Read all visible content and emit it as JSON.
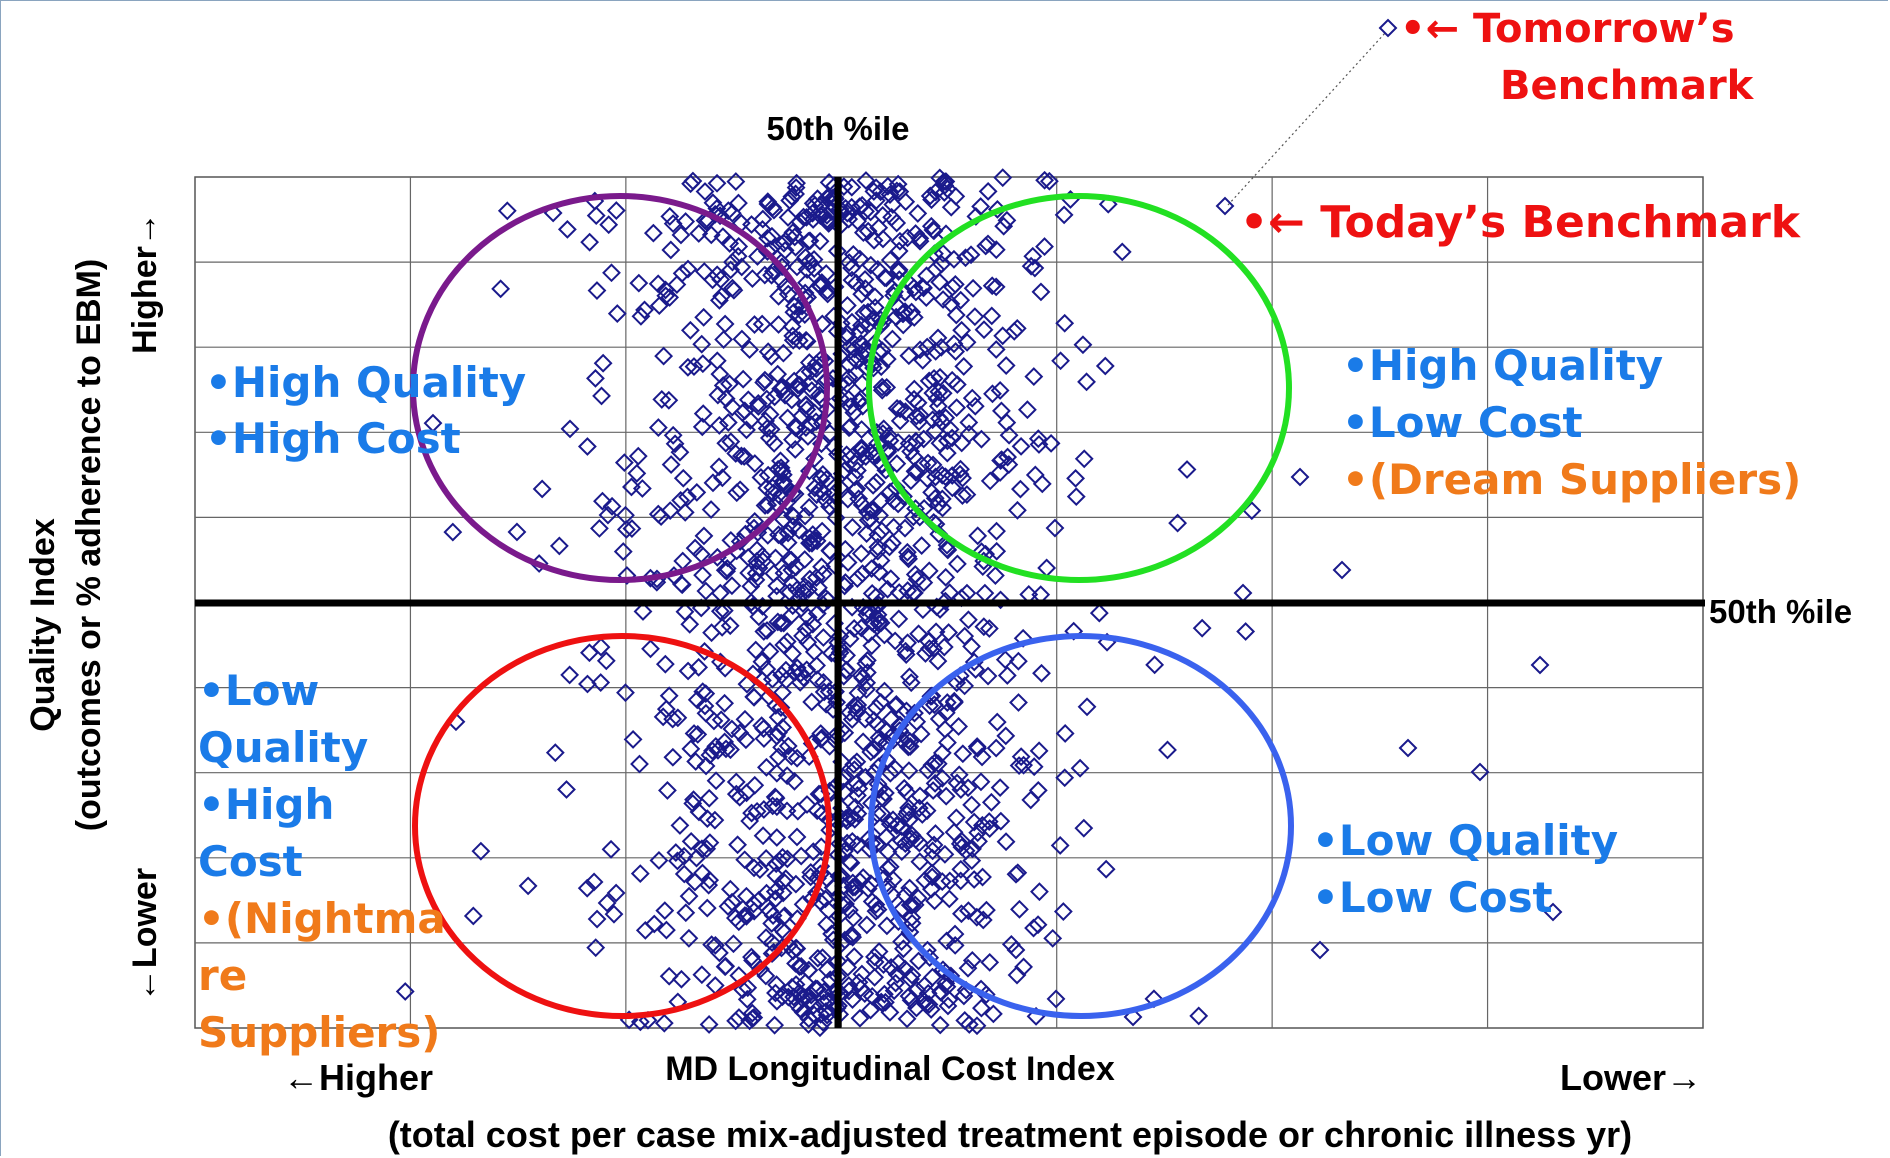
{
  "chart_data": {
    "type": "scatter",
    "title": "",
    "xlabel": "MD Longitudinal Cost Index",
    "xlabel_sub": "(total cost per case mix-adjusted treatment episode or chronic illness yr)",
    "x_left_label": "←Higher",
    "x_right_label": "Lower→",
    "ylabel": "Quality Index",
    "ylabel_sub": "(outcomes or % adherence to EBM)",
    "y_top_label": "Higher→",
    "y_bottom_label": "←Lower",
    "median_x_label": "50th %ile",
    "median_y_label": "50th %ile",
    "grid": true,
    "grid_cols": 7,
    "grid_rows": 10,
    "marker": "diamond-open",
    "marker_color": "#1a1a8c",
    "approx_point_count": 1600,
    "quadrants": [
      {
        "name": "top-left",
        "lines": [
          {
            "text": "•High Quality",
            "color": "#1a7be8"
          },
          {
            "text": "•High Cost",
            "color": "#1a7be8"
          }
        ],
        "circle_color": "#7a1a8c"
      },
      {
        "name": "top-right",
        "lines": [
          {
            "text": "•High Quality",
            "color": "#1a7be8"
          },
          {
            "text": "•Low Cost",
            "color": "#1a7be8"
          },
          {
            "text": "•(Dream Suppliers)",
            "color": "#f07a1a"
          }
        ],
        "circle_color": "#22e022"
      },
      {
        "name": "bottom-left",
        "lines": [
          {
            "text": "•Low",
            "color": "#1a7be8"
          },
          {
            "text": "Quality",
            "color": "#1a7be8"
          },
          {
            "text": "•High",
            "color": "#1a7be8"
          },
          {
            "text": "Cost",
            "color": "#1a7be8"
          },
          {
            "text": "•(Nightma",
            "color": "#f07a1a"
          },
          {
            "text": "re",
            "color": "#f07a1a"
          },
          {
            "text": "Suppliers)",
            "color": "#f07a1a"
          }
        ],
        "circle_color": "#ee1111"
      },
      {
        "name": "bottom-right",
        "lines": [
          {
            "text": "•Low Quality",
            "color": "#1a7be8"
          },
          {
            "text": "•Low Cost",
            "color": "#1a7be8"
          }
        ],
        "circle_color": "#3a62ee"
      }
    ],
    "annotations": [
      {
        "text": "•← Today’s Benchmark",
        "color": "#ee1111"
      },
      {
        "lines": [
          "•← Tomorrow’s",
          "Benchmark"
        ],
        "color": "#ee1111"
      }
    ]
  }
}
